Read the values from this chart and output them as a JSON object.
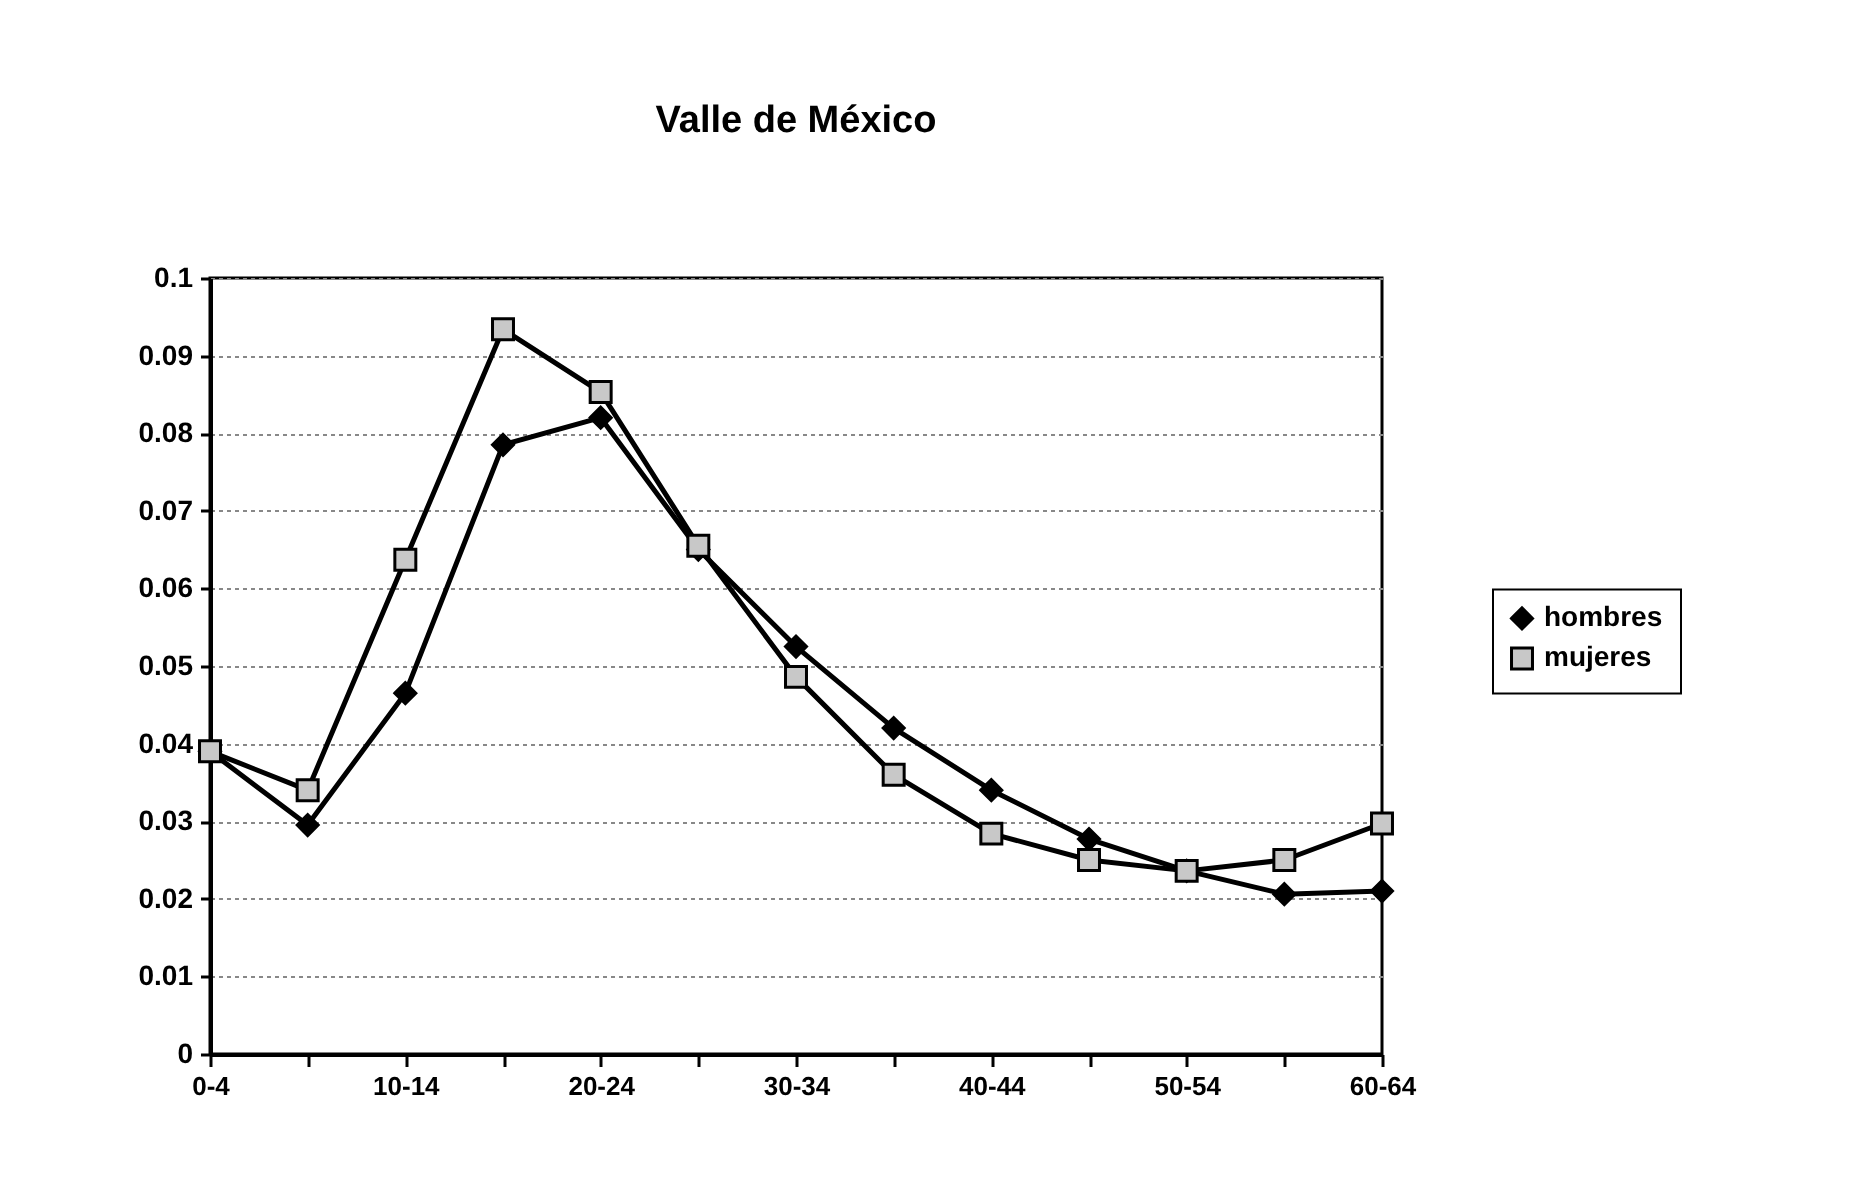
{
  "chart_data": {
    "type": "line",
    "title": "Valle de México",
    "categories": [
      "0-4",
      null,
      "10-14",
      null,
      "20-24",
      null,
      "30-34",
      null,
      "40-44",
      null,
      "50-54",
      null,
      "60-64"
    ],
    "series": [
      {
        "name": "hombres",
        "color": "#000000",
        "marker": "diamond",
        "values": [
          0.039,
          0.0295,
          0.0465,
          0.0785,
          0.082,
          0.065,
          0.0525,
          0.042,
          0.034,
          0.0277,
          0.0236,
          0.0206,
          0.021
        ]
      },
      {
        "name": "mujeres",
        "color": "#000000",
        "marker": "square",
        "values": [
          0.039,
          0.034,
          0.0637,
          0.0934,
          0.0853,
          0.0655,
          0.0486,
          0.036,
          0.0284,
          0.025,
          0.0236,
          0.025,
          0.0297
        ]
      }
    ],
    "ylim": [
      0,
      0.1
    ],
    "yticks": [
      0,
      0.01,
      0.02,
      0.03,
      0.04,
      0.05,
      0.06,
      0.07,
      0.08,
      0.09,
      0.1
    ],
    "grid": "y",
    "legend": "right",
    "line_style": "solid"
  }
}
